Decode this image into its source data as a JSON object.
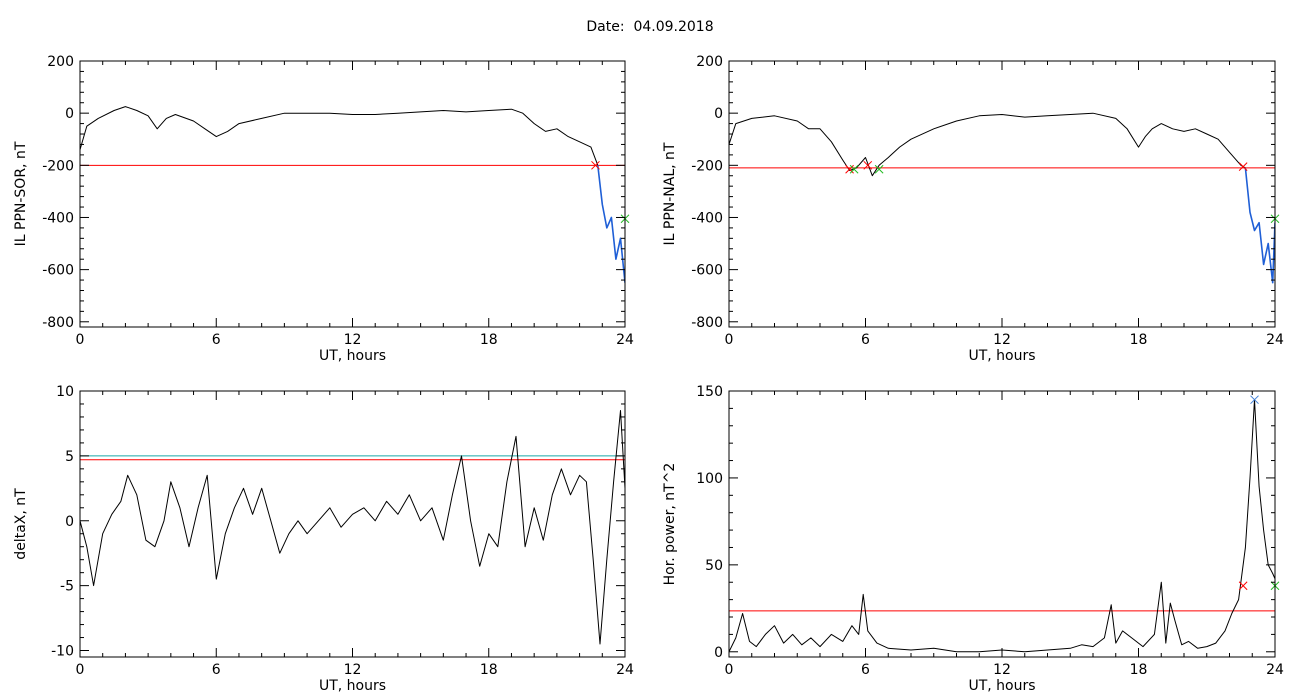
{
  "title": "Date:  04.09.2018",
  "colors": {
    "data": "#000000",
    "threshold_red": "#ff0000",
    "threshold_cyan": "#1aa6a6",
    "alert_blue": "#1f5fd6",
    "mark_green": "#22bb22",
    "mark_blue": "#3f7fd6"
  },
  "chart_data": [
    {
      "type": "line",
      "ylabel": "IL PPN-SOR, nT",
      "xlabel": "UT, hours",
      "xlim": [
        0,
        24
      ],
      "ylim": [
        -820,
        200
      ],
      "xticks": [
        0,
        6,
        12,
        18,
        24
      ],
      "yticks": [
        -800,
        -600,
        -400,
        -200,
        0,
        200
      ],
      "grid": false,
      "thresholds": [
        {
          "value": -200,
          "color": "red"
        }
      ],
      "series": [
        {
          "color": "black",
          "x": [
            0,
            0.3,
            0.8,
            1.5,
            2.0,
            2.5,
            3.0,
            3.4,
            3.8,
            4.2,
            5.0,
            5.5,
            6.0,
            6.5,
            7.0,
            8.0,
            9.0,
            10.0,
            11.0,
            12.0,
            13.0,
            14.0,
            15.0,
            16.0,
            17.0,
            18.0,
            19.0,
            19.5,
            20.0,
            20.5,
            21.0,
            21.5,
            22.0,
            22.5,
            22.8
          ],
          "y": [
            -140,
            -50,
            -20,
            10,
            25,
            10,
            -10,
            -60,
            -20,
            -5,
            -30,
            -60,
            -90,
            -70,
            -40,
            -20,
            0,
            0,
            0,
            -5,
            -5,
            0,
            5,
            10,
            5,
            10,
            15,
            0,
            -40,
            -70,
            -60,
            -90,
            -110,
            -130,
            -200
          ]
        },
        {
          "color": "blue",
          "x": [
            22.8,
            23.0,
            23.2,
            23.4,
            23.6,
            23.8,
            24.0
          ],
          "y": [
            -200,
            -350,
            -440,
            -400,
            -560,
            -480,
            -650
          ]
        }
      ],
      "markers": [
        {
          "x": 22.7,
          "y": -200,
          "color": "red",
          "symbol": "x"
        },
        {
          "x": 24.0,
          "y": -405,
          "color": "green",
          "symbol": "x"
        }
      ]
    },
    {
      "type": "line",
      "ylabel": "IL PPN-NAL, nT",
      "xlabel": "UT, hours",
      "xlim": [
        0,
        24
      ],
      "ylim": [
        -820,
        200
      ],
      "xticks": [
        0,
        6,
        12,
        18,
        24
      ],
      "yticks": [
        -800,
        -600,
        -400,
        -200,
        0,
        200
      ],
      "grid": false,
      "thresholds": [
        {
          "value": -210,
          "color": "red"
        }
      ],
      "series": [
        {
          "color": "black",
          "x": [
            0,
            0.3,
            1.0,
            2.0,
            3.0,
            3.5,
            4.0,
            4.5,
            5.0,
            5.3,
            5.6,
            6.0,
            6.3,
            6.6,
            7.0,
            7.5,
            8.0,
            9.0,
            10.0,
            11.0,
            12.0,
            13.0,
            14.0,
            15.0,
            16.0,
            17.0,
            17.5,
            18.0,
            18.3,
            18.6,
            19.0,
            19.5,
            20.0,
            20.5,
            21.0,
            21.5,
            22.0,
            22.5,
            22.7
          ],
          "y": [
            -120,
            -40,
            -20,
            -10,
            -30,
            -60,
            -60,
            -110,
            -180,
            -220,
            -210,
            -170,
            -240,
            -200,
            -170,
            -130,
            -100,
            -60,
            -30,
            -10,
            -5,
            -15,
            -10,
            -5,
            0,
            -20,
            -60,
            -130,
            -90,
            -60,
            -40,
            -60,
            -70,
            -60,
            -80,
            -100,
            -150,
            -200,
            -210
          ]
        },
        {
          "color": "blue",
          "x": [
            22.7,
            22.9,
            23.1,
            23.3,
            23.5,
            23.7,
            23.9,
            24.0
          ],
          "y": [
            -210,
            -380,
            -450,
            -420,
            -580,
            -500,
            -650,
            -420
          ]
        }
      ],
      "markers": [
        {
          "x": 5.3,
          "y": -215,
          "color": "red",
          "symbol": "x"
        },
        {
          "x": 5.5,
          "y": -215,
          "color": "green",
          "symbol": "x"
        },
        {
          "x": 6.1,
          "y": -200,
          "color": "red",
          "symbol": "x"
        },
        {
          "x": 6.6,
          "y": -215,
          "color": "green",
          "symbol": "x"
        },
        {
          "x": 22.6,
          "y": -205,
          "color": "red",
          "symbol": "x"
        },
        {
          "x": 24.0,
          "y": -405,
          "color": "green",
          "symbol": "x"
        }
      ]
    },
    {
      "type": "line",
      "ylabel": "deltaX, nT",
      "xlabel": "UT, hours",
      "xlim": [
        0,
        24
      ],
      "ylim": [
        -10.5,
        10
      ],
      "xticks": [
        0,
        6,
        12,
        18,
        24
      ],
      "yticks": [
        -10,
        -5,
        0,
        5,
        10
      ],
      "grid": false,
      "thresholds": [
        {
          "value": 5.0,
          "color": "cyan"
        },
        {
          "value": 4.7,
          "color": "red"
        }
      ],
      "series": [
        {
          "color": "black",
          "x": [
            0,
            0.3,
            0.6,
            1.0,
            1.4,
            1.8,
            2.1,
            2.5,
            2.9,
            3.3,
            3.7,
            4.0,
            4.4,
            4.8,
            5.2,
            5.6,
            6.0,
            6.4,
            6.8,
            7.2,
            7.6,
            8.0,
            8.4,
            8.8,
            9.2,
            9.6,
            10.0,
            10.5,
            11.0,
            11.5,
            12.0,
            12.5,
            13.0,
            13.5,
            14.0,
            14.5,
            15.0,
            15.5,
            16.0,
            16.4,
            16.8,
            17.2,
            17.6,
            18.0,
            18.4,
            18.8,
            19.2,
            19.6,
            20.0,
            20.4,
            20.8,
            21.2,
            21.6,
            22.0,
            22.3,
            22.6,
            22.9,
            23.2,
            23.5,
            23.8,
            24.0
          ],
          "y": [
            0,
            -2,
            -5,
            -1,
            0.5,
            1.5,
            3.5,
            2,
            -1.5,
            -2,
            0,
            3,
            1,
            -2,
            1,
            3.5,
            -4.5,
            -1,
            1,
            2.5,
            0.5,
            2.5,
            0,
            -2.5,
            -1,
            0,
            -1,
            0,
            1,
            -0.5,
            0.5,
            1,
            0,
            1.5,
            0.5,
            2,
            0,
            1,
            -1.5,
            2,
            5,
            0,
            -3.5,
            -1,
            -2,
            3,
            6.5,
            -2,
            1,
            -1.5,
            2,
            4,
            2,
            3.5,
            3,
            -3,
            -9.5,
            -3,
            3,
            8.5,
            2.5
          ]
        }
      ]
    },
    {
      "type": "line",
      "ylabel": "Hor. power, nT^2",
      "xlabel": "UT, hours",
      "xlim": [
        0,
        24
      ],
      "ylim": [
        -3,
        150
      ],
      "xticks": [
        0,
        6,
        12,
        18,
        24
      ],
      "yticks": [
        0,
        50,
        100,
        150
      ],
      "grid": false,
      "thresholds": [
        {
          "value": 23.5,
          "color": "red"
        }
      ],
      "series": [
        {
          "color": "black",
          "x": [
            0,
            0.3,
            0.6,
            0.9,
            1.2,
            1.6,
            2.0,
            2.4,
            2.8,
            3.2,
            3.6,
            4.0,
            4.5,
            5.0,
            5.4,
            5.7,
            5.9,
            6.1,
            6.5,
            7.0,
            8.0,
            9.0,
            10.0,
            11.0,
            12.0,
            13.0,
            14.0,
            15.0,
            15.5,
            16.0,
            16.5,
            16.8,
            17.0,
            17.3,
            17.7,
            18.2,
            18.7,
            19.0,
            19.2,
            19.4,
            19.6,
            19.9,
            20.2,
            20.6,
            21.0,
            21.4,
            21.8,
            22.1,
            22.4,
            22.7,
            22.9,
            23.1,
            23.3,
            23.5,
            23.7,
            23.9,
            24.0
          ],
          "y": [
            0,
            8,
            22,
            6,
            3,
            10,
            15,
            5,
            10,
            4,
            8,
            3,
            10,
            6,
            15,
            10,
            33,
            12,
            5,
            2,
            1,
            2,
            0,
            0,
            1,
            0,
            1,
            2,
            4,
            3,
            8,
            27,
            5,
            12,
            8,
            3,
            10,
            40,
            5,
            28,
            18,
            4,
            6,
            2,
            3,
            5,
            12,
            22,
            30,
            60,
            100,
            145,
            95,
            70,
            50,
            45,
            42
          ]
        }
      ],
      "markers": [
        {
          "x": 22.6,
          "y": 38,
          "color": "red",
          "symbol": "x"
        },
        {
          "x": 23.1,
          "y": 145,
          "color": "blue",
          "symbol": "x"
        },
        {
          "x": 24.0,
          "y": 38,
          "color": "green",
          "symbol": "x"
        }
      ]
    }
  ]
}
